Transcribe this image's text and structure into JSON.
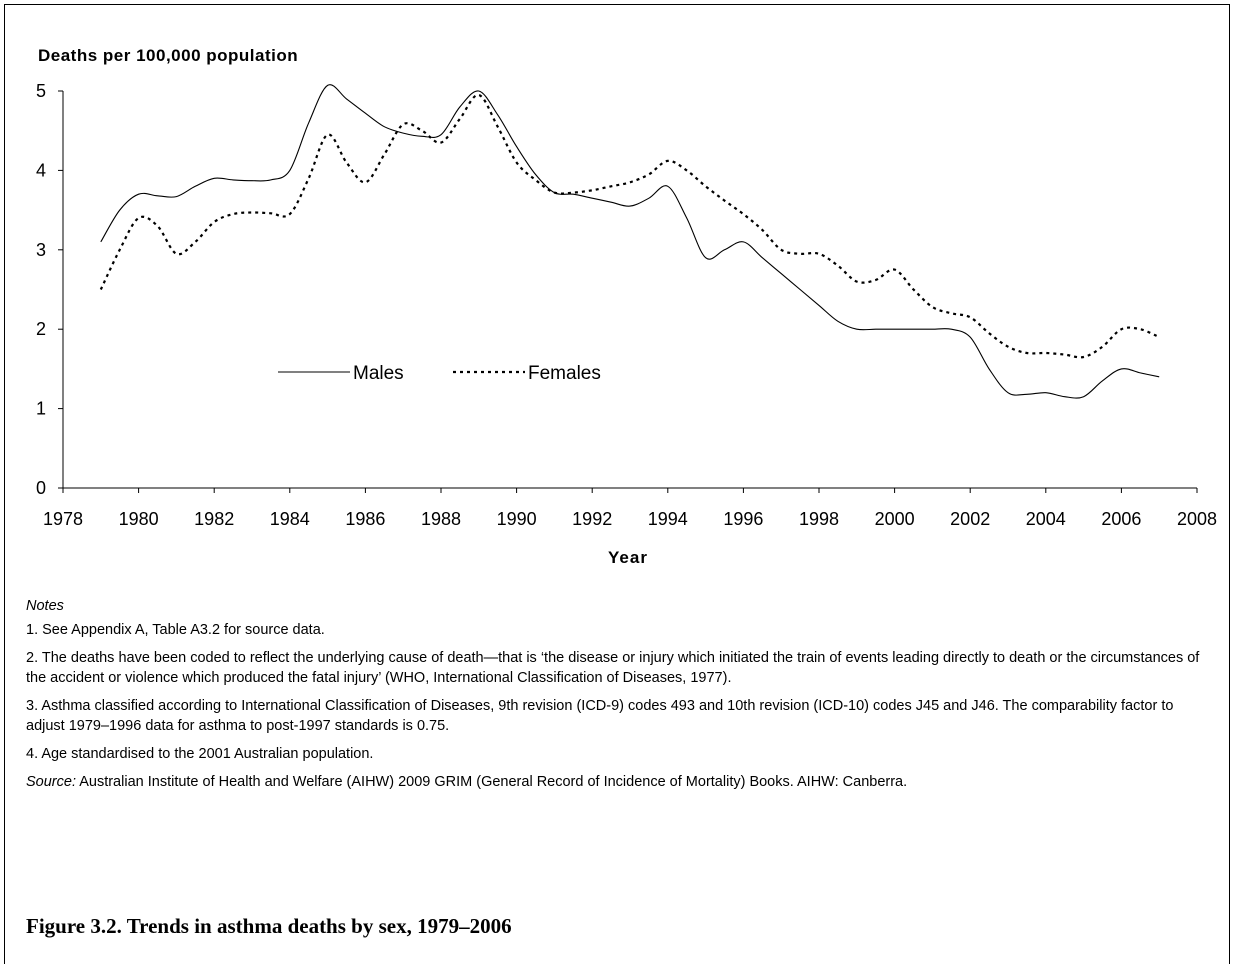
{
  "chart_data": {
    "type": "line",
    "ylabel": "Deaths per 100,000 population",
    "xlabel": "Year",
    "xlim": [
      1978,
      2008
    ],
    "ylim": [
      0,
      5
    ],
    "x_ticks": [
      "1978",
      "1980",
      "1982",
      "1984",
      "1986",
      "1988",
      "1990",
      "1992",
      "1994",
      "1996",
      "1998",
      "2000",
      "2002",
      "2004",
      "2006",
      "2008"
    ],
    "y_ticks": [
      "0",
      "1",
      "2",
      "3",
      "4",
      "5"
    ],
    "grid": false,
    "legend_position": "center-left",
    "series": [
      {
        "name": "Males",
        "style": "solid",
        "color": "#000000",
        "x": [
          1979,
          1979.5,
          1980,
          1980.5,
          1981,
          1981.5,
          1982,
          1982.5,
          1983,
          1983.5,
          1984,
          1984.5,
          1985,
          1985.5,
          1986,
          1986.5,
          1987,
          1987.5,
          1988,
          1988.5,
          1989,
          1989.5,
          1990,
          1990.5,
          1991,
          1991.5,
          1992,
          1992.5,
          1993,
          1993.5,
          1994,
          1994.5,
          1995,
          1995.5,
          1996,
          1996.5,
          1997,
          1997.5,
          1998,
          1998.5,
          1999,
          1999.5,
          2000,
          2000.5,
          2001,
          2001.5,
          2002,
          2002.5,
          2003,
          2003.5,
          2004,
          2004.5,
          2005,
          2005.5,
          2006,
          2006.5,
          2007
        ],
        "values": [
          3.1,
          3.5,
          3.7,
          3.68,
          3.67,
          3.8,
          3.9,
          3.88,
          3.87,
          3.88,
          4.0,
          4.6,
          5.07,
          4.9,
          4.72,
          4.55,
          4.47,
          4.43,
          4.45,
          4.8,
          5.0,
          4.7,
          4.3,
          3.95,
          3.72,
          3.7,
          3.65,
          3.6,
          3.55,
          3.65,
          3.8,
          3.4,
          2.9,
          3.0,
          3.1,
          2.9,
          2.7,
          2.5,
          2.3,
          2.1,
          2.0,
          2.0,
          2.0,
          2.0,
          2.0,
          2.0,
          1.9,
          1.5,
          1.2,
          1.18,
          1.2,
          1.15,
          1.15,
          1.35,
          1.5,
          1.45,
          1.4
        ]
      },
      {
        "name": "Females",
        "style": "dotted",
        "color": "#000000",
        "x": [
          1979,
          1979.5,
          1980,
          1980.5,
          1981,
          1981.5,
          1982,
          1982.5,
          1983,
          1983.5,
          1984,
          1984.5,
          1985,
          1985.5,
          1986,
          1986.5,
          1987,
          1987.5,
          1988,
          1988.5,
          1989,
          1989.5,
          1990,
          1990.5,
          1991,
          1991.5,
          1992,
          1992.5,
          1993,
          1993.5,
          1994,
          1994.5,
          1995,
          1995.5,
          1996,
          1996.5,
          1997,
          1997.5,
          1998,
          1998.5,
          1999,
          1999.5,
          2000,
          2000.5,
          2001,
          2001.5,
          2002,
          2002.5,
          2003,
          2003.5,
          2004,
          2004.5,
          2005,
          2005.5,
          2006,
          2006.5,
          2007
        ],
        "values": [
          2.5,
          3.0,
          3.4,
          3.3,
          2.95,
          3.1,
          3.35,
          3.45,
          3.47,
          3.46,
          3.45,
          3.9,
          4.45,
          4.1,
          3.85,
          4.2,
          4.58,
          4.5,
          4.35,
          4.65,
          4.95,
          4.55,
          4.1,
          3.88,
          3.72,
          3.72,
          3.75,
          3.8,
          3.85,
          3.95,
          4.12,
          4.0,
          3.8,
          3.62,
          3.45,
          3.25,
          3.0,
          2.95,
          2.95,
          2.8,
          2.6,
          2.62,
          2.75,
          2.5,
          2.28,
          2.2,
          2.15,
          1.95,
          1.78,
          1.7,
          1.7,
          1.68,
          1.65,
          1.78,
          2.0,
          2.0,
          1.9
        ]
      }
    ]
  },
  "notes": {
    "heading": "Notes",
    "items": [
      "1. See Appendix A, Table A3.2 for source data.",
      "2. The deaths have been coded to reflect the underlying cause of death—that is ‘the disease or injury which initiated the train of events leading directly to death or the circumstances of the accident or violence which produced the fatal injury’ (WHO, International Classification of Diseases, 1977).",
      "3. Asthma classified according to International Classification of Diseases, 9th revision (ICD-9) codes 493 and 10th revision (ICD-10) codes J45 and J46. The comparability factor to adjust 1979–1996 data for asthma to post-1997 standards is 0.75.",
      "4. Age standardised to the 2001 Australian population."
    ],
    "source_label": "Source:",
    "source_text": " Australian Institute of Health and Welfare (AIHW) 2009 GRIM (General Record of Incidence of Mortality) Books. AIHW: Canberra."
  },
  "figure_title": "Figure 3.2. Trends in asthma deaths by sex, 1979–2006"
}
